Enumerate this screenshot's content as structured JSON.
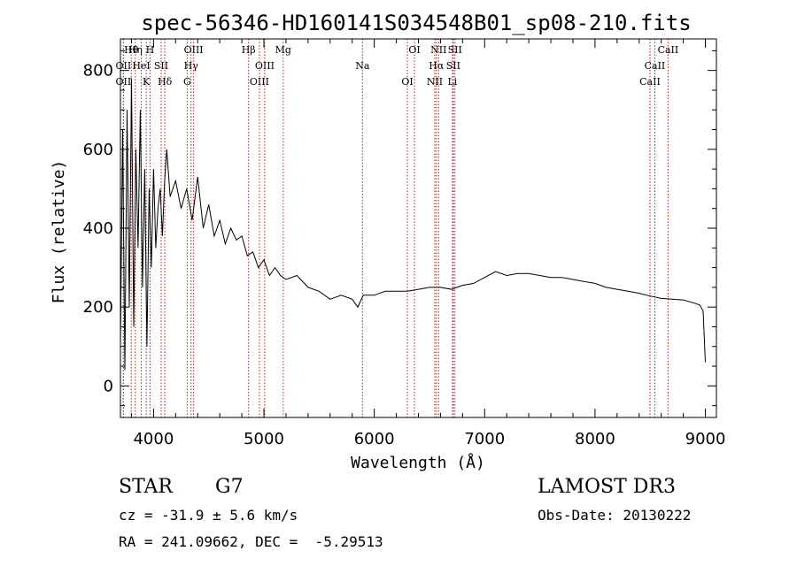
{
  "chart_data": {
    "type": "line",
    "title": "spec-56346-HD160141S034548B01_sp08-210.fits",
    "xlabel": "Wavelength (Å)",
    "ylabel": "Flux (relative)",
    "xlim": [
      3700,
      9100
    ],
    "ylim": [
      -80,
      880
    ],
    "xticks": [
      4000,
      5000,
      6000,
      7000,
      8000,
      9000
    ],
    "xtick_labels": [
      "4000",
      "5000",
      "6000",
      "7000",
      "8000",
      "9000"
    ],
    "yticks": [
      0,
      200,
      400,
      600,
      800
    ],
    "ytick_labels": [
      "0",
      "200",
      "400",
      "600",
      "800"
    ],
    "grid": false,
    "series": [
      {
        "name": "flux",
        "x": [
          3700,
          3720,
          3740,
          3760,
          3780,
          3800,
          3820,
          3840,
          3860,
          3880,
          3900,
          3920,
          3940,
          3960,
          3980,
          4000,
          4020,
          4040,
          4060,
          4080,
          4100,
          4120,
          4150,
          4200,
          4250,
          4300,
          4350,
          4400,
          4450,
          4500,
          4550,
          4600,
          4650,
          4700,
          4750,
          4800,
          4850,
          4900,
          4950,
          5000,
          5050,
          5100,
          5150,
          5200,
          5300,
          5400,
          5500,
          5600,
          5700,
          5800,
          5850,
          5900,
          6000,
          6100,
          6200,
          6300,
          6400,
          6500,
          6600,
          6700,
          6800,
          6900,
          7000,
          7100,
          7200,
          7300,
          7400,
          7500,
          7600,
          7700,
          7800,
          7900,
          8000,
          8100,
          8200,
          8300,
          8400,
          8500,
          8600,
          8700,
          8800,
          8900,
          8950,
          8980,
          9000
        ],
        "values": [
          100,
          650,
          40,
          700,
          200,
          780,
          150,
          600,
          350,
          700,
          250,
          550,
          100,
          500,
          300,
          550,
          350,
          450,
          500,
          380,
          520,
          600,
          480,
          520,
          450,
          500,
          420,
          530,
          400,
          460,
          380,
          420,
          360,
          400,
          370,
          380,
          330,
          340,
          300,
          320,
          280,
          300,
          280,
          270,
          280,
          250,
          240,
          220,
          230,
          220,
          200,
          230,
          230,
          240,
          240,
          240,
          245,
          250,
          250,
          245,
          255,
          260,
          275,
          290,
          280,
          285,
          285,
          280,
          275,
          275,
          270,
          265,
          260,
          250,
          245,
          240,
          235,
          228,
          222,
          220,
          218,
          210,
          205,
          190,
          60
        ]
      }
    ],
    "lines": [
      {
        "label": "Hθ",
        "x": 3798
      },
      {
        "label": "OII",
        "x": 3727
      },
      {
        "label": "OII",
        "x": 3727
      },
      {
        "label": "Hη",
        "x": 3835
      },
      {
        "label": "HeI",
        "x": 3889
      },
      {
        "label": "K",
        "x": 3934
      },
      {
        "label": "H",
        "x": 3968
      },
      {
        "label": "SII",
        "x": 4069
      },
      {
        "label": "Hδ",
        "x": 4102
      },
      {
        "label": "OIII",
        "x": 4363
      },
      {
        "label": "Hγ",
        "x": 4340
      },
      {
        "label": "G",
        "x": 4305
      },
      {
        "label": "Hβ",
        "x": 4861
      },
      {
        "label": "OIII",
        "x": 5007
      },
      {
        "label": "OIII",
        "x": 4959
      },
      {
        "label": "Mg",
        "x": 5175
      },
      {
        "label": "Na",
        "x": 5893
      },
      {
        "label": "OI",
        "x": 6300
      },
      {
        "label": "OI",
        "x": 6364
      },
      {
        "label": "Hα",
        "x": 6563
      },
      {
        "label": "NII",
        "x": 6548
      },
      {
        "label": "NII",
        "x": 6583
      },
      {
        "label": "SII",
        "x": 6716
      },
      {
        "label": "Li",
        "x": 6708
      },
      {
        "label": "SII",
        "x": 6731
      },
      {
        "label": "CaII",
        "x": 8542
      },
      {
        "label": "CaII",
        "x": 8498
      },
      {
        "label": "CaII",
        "x": 8662
      }
    ]
  },
  "info": {
    "object_class": "STAR",
    "subclass": "G7",
    "survey": "LAMOST DR3",
    "cz": "cz = -31.9 ± 5.6 km/s",
    "obs_date": "Obs-Date: 20130222",
    "coords": "RA = 241.09662, DEC =  -5.29513"
  },
  "colors": {
    "line_marker": "#b22222",
    "spectrum": "#000000",
    "axes": "#000000"
  }
}
